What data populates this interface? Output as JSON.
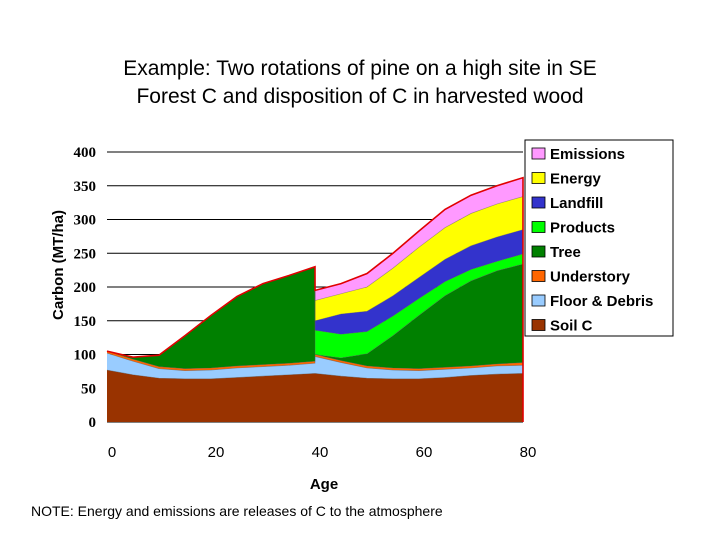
{
  "title_line1": "Example: Two rotations of pine on a high site in SE",
  "title_line2": "Forest C and disposition of C in harvested wood",
  "note": "NOTE: Energy and emissions are releases of C to the atmosphere",
  "chart_data": {
    "type": "area",
    "stacked": true,
    "xlabel": "Age",
    "ylabel": "Carbon (MT/ha)",
    "xlim": [
      0,
      80
    ],
    "ylim": [
      0,
      400
    ],
    "x_ticks": [
      0,
      20,
      40,
      60,
      80
    ],
    "y_ticks": [
      0,
      50,
      100,
      150,
      200,
      250,
      300,
      350,
      400
    ],
    "grid": "horizontal",
    "legend_position": "right",
    "x": [
      0,
      5,
      10,
      15,
      20,
      25,
      30,
      35,
      40,
      40.01,
      45,
      50,
      55,
      60,
      65,
      70,
      75,
      80
    ],
    "series": [
      {
        "name": "Soil C",
        "color": "#993300",
        "values": [
          77,
          70,
          65,
          64,
          64,
          66,
          68,
          70,
          72,
          72,
          68,
          65,
          64,
          64,
          66,
          69,
          71,
          72
        ]
      },
      {
        "name": "Floor & Debris",
        "color": "#99ccff",
        "values": [
          25,
          20,
          14,
          12,
          13,
          14,
          14,
          14,
          15,
          25,
          20,
          15,
          13,
          12,
          12,
          11,
          12,
          12
        ]
      },
      {
        "name": "Understory",
        "color": "#ff6600",
        "values": [
          3,
          3,
          3,
          3,
          3,
          3,
          3,
          3,
          3,
          3,
          3,
          3,
          3,
          3,
          3,
          3,
          3,
          4
        ]
      },
      {
        "name": "Tree",
        "color": "#008000",
        "values": [
          0,
          3,
          17,
          49,
          78,
          103,
          120,
          130,
          140,
          0,
          4,
          18,
          48,
          79,
          106,
          126,
          138,
          146
        ]
      },
      {
        "name": "Products",
        "color": "#00ff00",
        "values": [
          0,
          0,
          0,
          0,
          0,
          0,
          0,
          0,
          0,
          36,
          35,
          33,
          29,
          25,
          21,
          17,
          14,
          15
        ]
      },
      {
        "name": "Landfill",
        "color": "#3333cc",
        "values": [
          0,
          0,
          0,
          0,
          0,
          0,
          0,
          0,
          0,
          14,
          30,
          30,
          30,
          31,
          33,
          35,
          36,
          36
        ]
      },
      {
        "name": "Energy",
        "color": "#ffff00",
        "values": [
          0,
          0,
          0,
          0,
          0,
          0,
          0,
          0,
          0,
          30,
          30,
          36,
          41,
          45,
          47,
          48,
          49,
          49
        ]
      },
      {
        "name": "Emissions",
        "color": "#ff99ff",
        "values": [
          0,
          0,
          0,
          0,
          0,
          0,
          0,
          0,
          0,
          15,
          15,
          20,
          22,
          24,
          27,
          27,
          27,
          28
        ]
      }
    ],
    "legend_order": [
      "Emissions",
      "Energy",
      "Landfill",
      "Products",
      "Tree",
      "Understory",
      "Floor & Debris",
      "Soil C"
    ]
  }
}
